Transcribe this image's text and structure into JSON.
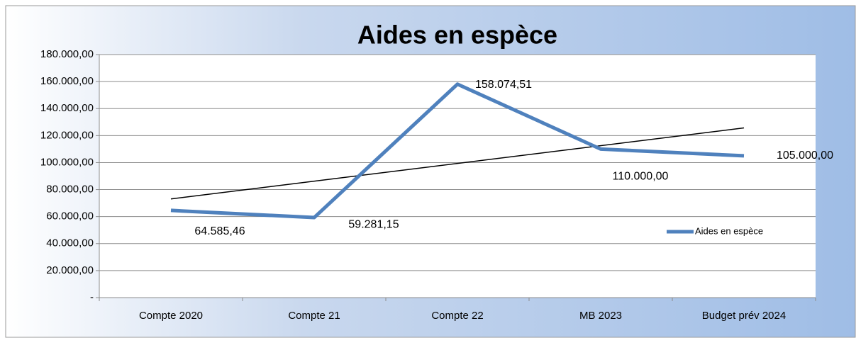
{
  "chart_data": {
    "type": "line",
    "title": "Aides en espèce",
    "categories": [
      "Compte 2020",
      "Compte 21",
      "Compte 22",
      "MB 2023",
      "Budget prév 2024"
    ],
    "series": [
      {
        "name": "Aides en espèce",
        "color": "#4f81bd",
        "values": [
          64585.46,
          59281.15,
          158074.51,
          110000,
          105000
        ],
        "value_labels": [
          "64.585,46",
          "59.281,15",
          "158.074,51",
          "110.000,00",
          "105.000,00"
        ]
      }
    ],
    "ylim": [
      0,
      180000
    ],
    "yticks": [
      {
        "value": 0,
        "label": "-"
      },
      {
        "value": 20000,
        "label": "20.000,00"
      },
      {
        "value": 40000,
        "label": "40.000,00"
      },
      {
        "value": 60000,
        "label": "60.000,00"
      },
      {
        "value": 80000,
        "label": "80.000,00"
      },
      {
        "value": 100000,
        "label": "100.000,00"
      },
      {
        "value": 120000,
        "label": "120.000,00"
      },
      {
        "value": 140000,
        "label": "140.000,00"
      },
      {
        "value": 160000,
        "label": "160.000,00"
      },
      {
        "value": 180000,
        "label": "180.000,00"
      }
    ],
    "grid": true,
    "trendline": "linear",
    "legend": "right"
  }
}
